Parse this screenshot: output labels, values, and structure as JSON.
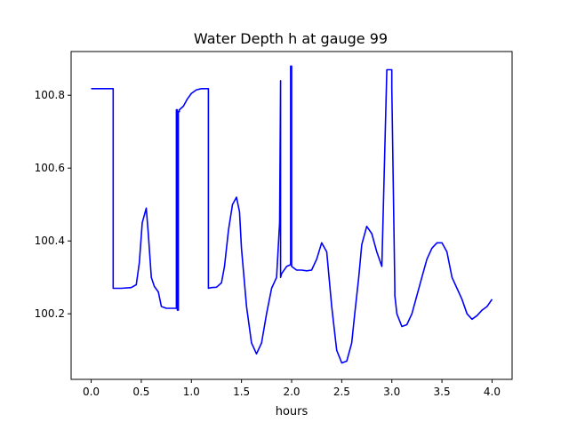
{
  "chart_data": {
    "type": "line",
    "title": "Water Depth h at gauge 99",
    "xlabel": "hours",
    "ylabel": "",
    "xlim": [
      -0.2,
      4.2
    ],
    "ylim": [
      100.02,
      100.92
    ],
    "xticks": [
      0.0,
      0.5,
      1.0,
      1.5,
      2.0,
      2.5,
      3.0,
      3.5,
      4.0
    ],
    "xtick_labels": [
      "0.0",
      "0.5",
      "1.0",
      "1.5",
      "2.0",
      "2.5",
      "3.0",
      "3.5",
      "4.0"
    ],
    "yticks": [
      100.2,
      100.4,
      100.6,
      100.8
    ],
    "ytick_labels": [
      "100.2",
      "100.4",
      "100.6",
      "100.8"
    ],
    "grid": false,
    "legend": false,
    "line_color": "#0000ff",
    "series": [
      {
        "name": "",
        "x": [
          0.0,
          0.22,
          0.22,
          0.3,
          0.4,
          0.45,
          0.48,
          0.51,
          0.55,
          0.57,
          0.6,
          0.63,
          0.67,
          0.7,
          0.75,
          0.8,
          0.85,
          0.85,
          0.86,
          0.86,
          0.87,
          0.87,
          0.88,
          0.88,
          0.92,
          0.96,
          1.0,
          1.05,
          1.1,
          1.17,
          1.17,
          1.2,
          1.25,
          1.3,
          1.33,
          1.37,
          1.41,
          1.45,
          1.48,
          1.5,
          1.55,
          1.6,
          1.65,
          1.7,
          1.75,
          1.8,
          1.85,
          1.88,
          1.89,
          1.89,
          1.9,
          1.95,
          1.99,
          1.99,
          2.0,
          2.0,
          2.05,
          2.1,
          2.15,
          2.2,
          2.25,
          2.3,
          2.35,
          2.4,
          2.45,
          2.5,
          2.55,
          2.6,
          2.63,
          2.67,
          2.7,
          2.75,
          2.8,
          2.85,
          2.9,
          2.95,
          3.0,
          3.0,
          3.03,
          3.03,
          3.05,
          3.1,
          3.15,
          3.2,
          3.25,
          3.3,
          3.35,
          3.4,
          3.45,
          3.5,
          3.55,
          3.6,
          3.65,
          3.7,
          3.75,
          3.8,
          3.85,
          3.9,
          3.95,
          4.0
        ],
        "y": [
          100.818,
          100.818,
          100.27,
          100.27,
          100.272,
          100.28,
          100.34,
          100.45,
          100.49,
          100.42,
          100.3,
          100.275,
          100.26,
          100.22,
          100.215,
          100.215,
          100.215,
          100.76,
          100.76,
          100.21,
          100.21,
          100.755,
          100.755,
          100.76,
          100.77,
          100.79,
          100.805,
          100.815,
          100.818,
          100.818,
          100.27,
          100.272,
          100.273,
          100.285,
          100.33,
          100.43,
          100.5,
          100.52,
          100.48,
          100.38,
          100.22,
          100.12,
          100.09,
          100.12,
          100.2,
          100.27,
          100.3,
          100.45,
          100.84,
          100.3,
          100.31,
          100.33,
          100.335,
          100.88,
          100.88,
          100.33,
          100.32,
          100.32,
          100.318,
          100.32,
          100.35,
          100.395,
          100.37,
          100.22,
          100.1,
          100.065,
          100.07,
          100.12,
          100.2,
          100.3,
          100.39,
          100.44,
          100.42,
          100.37,
          100.33,
          100.87,
          100.87,
          100.82,
          100.27,
          100.25,
          100.2,
          100.165,
          100.17,
          100.2,
          100.25,
          100.3,
          100.35,
          100.38,
          100.395,
          100.395,
          100.37,
          100.3,
          100.27,
          100.24,
          100.2,
          100.185,
          100.195,
          100.21,
          100.22,
          100.24
        ]
      }
    ]
  }
}
